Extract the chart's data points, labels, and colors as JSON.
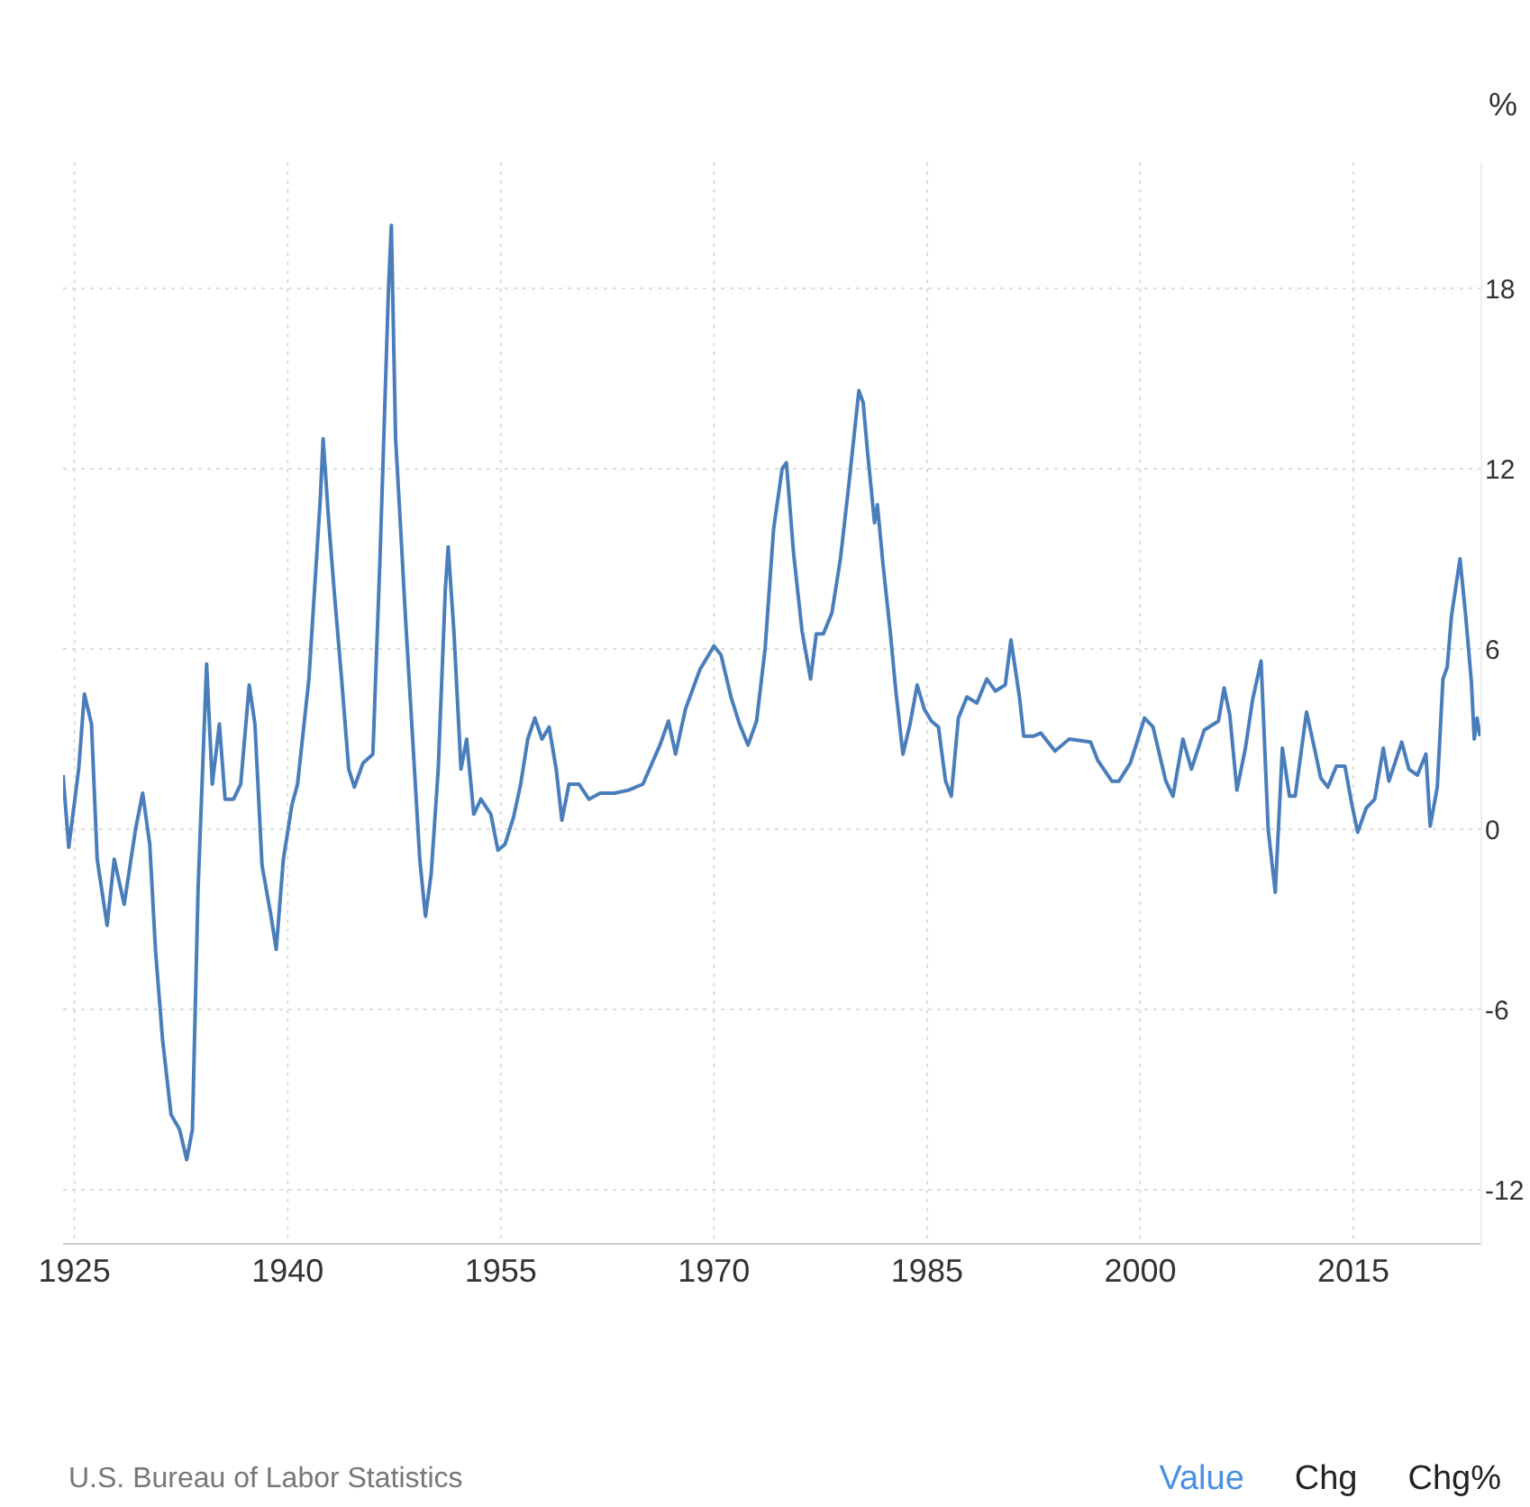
{
  "chart_data": {
    "type": "line",
    "ylabel": "%",
    "annotations": [
      "U.S. Bureau of Labor Statistics",
      "Value",
      "Chg",
      "Chg%"
    ],
    "xlim": [
      1924.2,
      2024
    ],
    "xticks": [
      1925,
      1940,
      1955,
      1970,
      1985,
      2000,
      2015
    ],
    "ylim": [
      -13.8,
      22.2
    ],
    "yticks": [
      -12,
      -6,
      0,
      6,
      12,
      18
    ],
    "grid": true,
    "marker": "none",
    "line_style": "solid",
    "x": [
      1924.2,
      1924.6,
      1925.3,
      1925.7,
      1926.2,
      1926.6,
      1927.3,
      1927.8,
      1928.5,
      1929.3,
      1929.8,
      1930.3,
      1930.7,
      1931.2,
      1931.8,
      1932.4,
      1932.9,
      1933.3,
      1933.7,
      1934.3,
      1934.7,
      1935.2,
      1935.6,
      1936.2,
      1936.7,
      1937.3,
      1937.7,
      1938.2,
      1938.8,
      1939.2,
      1939.7,
      1940.3,
      1940.7,
      1941.5,
      1942.3,
      1942.5,
      1942.9,
      1943.3,
      1943.8,
      1944.3,
      1944.7,
      1945.3,
      1946.0,
      1946.5,
      1947.1,
      1947.3,
      1947.6,
      1948.0,
      1948.3,
      1948.8,
      1949.3,
      1949.7,
      1950.1,
      1950.6,
      1951.1,
      1951.3,
      1951.7,
      1952.2,
      1952.6,
      1953.1,
      1953.6,
      1954.3,
      1954.8,
      1955.3,
      1955.9,
      1956.4,
      1956.9,
      1957.4,
      1957.9,
      1958.4,
      1958.9,
      1959.3,
      1959.8,
      1960.5,
      1961.2,
      1962.0,
      1963.0,
      1964.0,
      1965.0,
      1966.2,
      1966.8,
      1967.3,
      1968.0,
      1969.0,
      1970.0,
      1970.5,
      1971.2,
      1971.8,
      1972.4,
      1973.0,
      1973.6,
      1974.2,
      1974.8,
      1975.1,
      1975.6,
      1976.2,
      1976.8,
      1977.2,
      1977.7,
      1978.3,
      1978.9,
      1979.5,
      1980.2,
      1980.5,
      1980.8,
      1981.3,
      1981.5,
      1981.9,
      1982.4,
      1982.8,
      1983.3,
      1983.8,
      1984.3,
      1984.8,
      1985.3,
      1985.8,
      1986.3,
      1986.7,
      1987.2,
      1987.8,
      1988.5,
      1989.2,
      1989.8,
      1990.5,
      1990.9,
      1991.5,
      1991.8,
      1992.5,
      1993.0,
      1994.0,
      1995.0,
      1996.5,
      1997.0,
      1998.0,
      1998.5,
      1999.3,
      2000.3,
      2000.9,
      2001.8,
      2002.3,
      2003.0,
      2003.6,
      2004.5,
      2005.5,
      2005.9,
      2006.3,
      2006.8,
      2007.4,
      2007.9,
      2008.5,
      2009.0,
      2009.5,
      2010.0,
      2010.5,
      2010.9,
      2011.7,
      2012.3,
      2012.7,
      2013.2,
      2013.8,
      2014.4,
      2014.9,
      2015.3,
      2015.9,
      2016.5,
      2017.1,
      2017.5,
      2018.4,
      2018.9,
      2019.5,
      2020.1,
      2020.4,
      2020.9,
      2021.3,
      2021.6,
      2021.9,
      2022.5,
      2022.9,
      2023.3,
      2023.5,
      2023.7,
      2023.9
    ],
    "series": [
      {
        "color": "#4a7ebb",
        "values": [
          1.8,
          -0.6,
          2.0,
          4.5,
          3.5,
          -1,
          -3.2,
          -1,
          -2.5,
          0,
          1.2,
          -0.5,
          -4,
          -7,
          -9.5,
          -10,
          -11,
          -10,
          -2,
          5.5,
          1.5,
          3.5,
          1,
          1,
          1.5,
          4.8,
          3.5,
          -1.2,
          -2.8,
          -4,
          -1,
          0.8,
          1.5,
          5,
          11,
          13,
          10.2,
          7.8,
          5,
          2,
          1.4,
          2.2,
          2.5,
          9,
          18,
          20.1,
          13,
          9.6,
          7,
          3,
          -1,
          -2.9,
          -1.5,
          2,
          8,
          9.4,
          6.6,
          2,
          3,
          0.5,
          1,
          0.5,
          -0.7,
          -0.5,
          0.4,
          1.5,
          3,
          3.7,
          3,
          3.4,
          2,
          0.3,
          1.5,
          1.5,
          1,
          1.2,
          1.2,
          1.3,
          1.5,
          2.8,
          3.6,
          2.5,
          4,
          5.3,
          6.1,
          5.8,
          4.4,
          3.5,
          2.8,
          3.6,
          6,
          10,
          12,
          12.2,
          9.2,
          6.6,
          5,
          6.5,
          6.5,
          7.2,
          9,
          11.5,
          14.6,
          14.2,
          12.6,
          10.2,
          10.8,
          8.8,
          6.6,
          4.6,
          2.5,
          3.5,
          4.8,
          4,
          3.6,
          3.4,
          1.6,
          1.1,
          3.7,
          4.4,
          4.2,
          5,
          4.6,
          4.8,
          6.3,
          4.4,
          3.1,
          3.1,
          3.2,
          2.6,
          3,
          2.9,
          2.3,
          1.6,
          1.6,
          2.2,
          3.7,
          3.4,
          1.6,
          1.1,
          3,
          2,
          3.3,
          3.6,
          4.7,
          3.8,
          1.3,
          2.7,
          4.3,
          5.6,
          0,
          -2.1,
          2.7,
          1.1,
          1.1,
          3.9,
          2.6,
          1.7,
          1.4,
          2.1,
          2.1,
          0.8,
          -0.1,
          0.7,
          1,
          2.7,
          1.6,
          2.9,
          2,
          1.8,
          2.5,
          0.1,
          1.4,
          5,
          5.4,
          7.1,
          9,
          7.1,
          4.9,
          3,
          3.7,
          3.1
        ]
      }
    ]
  }
}
